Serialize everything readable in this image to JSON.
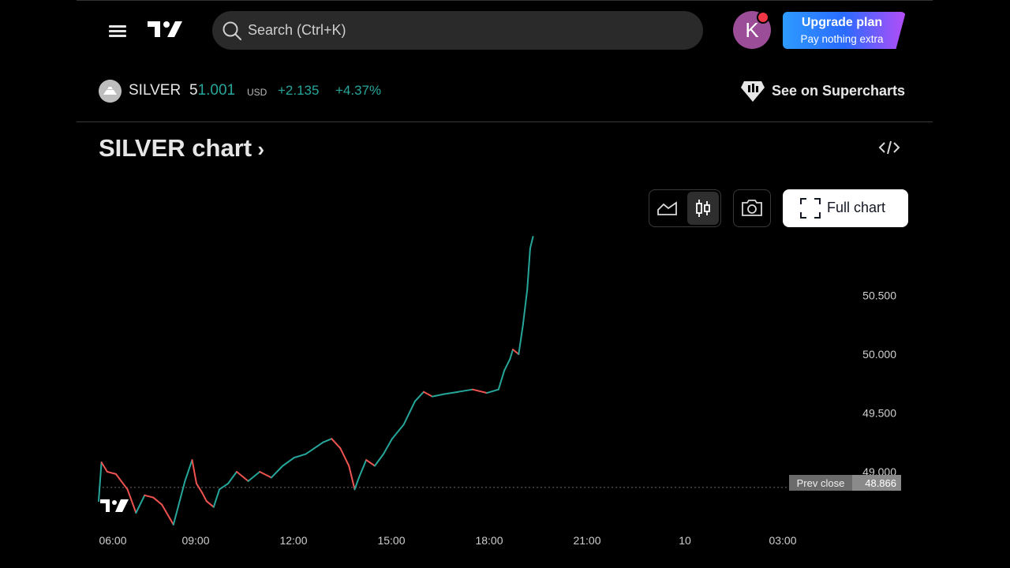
{
  "header": {
    "search_placeholder": "Search (Ctrl+K)",
    "avatar_initial": "K",
    "upgrade_title": "Upgrade plan",
    "upgrade_subtitle": "Pay nothing extra"
  },
  "symbol": {
    "name": "SILVER",
    "price_head": "5",
    "price_tail": "1.001",
    "currency": "USD",
    "change": "+2.135",
    "change_percent": "+4.37%",
    "supercharts_label": "See on Supercharts"
  },
  "chart_section": {
    "title": "SILVER chart",
    "full_chart_label": "Full chart"
  },
  "colors": {
    "up": "#26a69a",
    "down": "#ef5350",
    "accent": "#2962ff"
  },
  "chart_data": {
    "type": "line",
    "x_ticks": [
      "06:00",
      "09:00",
      "12:00",
      "15:00",
      "18:00",
      "21:00",
      "10",
      "03:00"
    ],
    "y_ticks": [
      "50.500",
      "50.000",
      "49.500",
      "49.000"
    ],
    "ylim": [
      48.55,
      51.0
    ],
    "prev_close_label": "Prev close",
    "prev_close_value": "48.866",
    "prev_close": 48.866,
    "x": [
      6.0,
      6.1,
      6.3,
      6.6,
      7.0,
      7.3,
      7.6,
      7.9,
      8.2,
      8.6,
      9.0,
      9.25,
      9.4,
      9.6,
      9.75,
      10.0,
      10.2,
      10.5,
      10.8,
      11.2,
      11.6,
      12.0,
      12.4,
      12.8,
      13.2,
      13.5,
      13.8,
      14.1,
      14.4,
      14.7,
      14.9,
      15.05,
      15.3,
      15.6,
      15.9,
      16.2,
      16.6,
      17.0,
      17.3,
      17.6,
      18.0,
      18.5,
      19.0,
      19.5,
      19.9,
      20.1,
      20.3,
      20.4,
      20.6,
      20.75,
      20.9,
      21.0,
      21.1
    ],
    "values": [
      48.75,
      49.08,
      49.0,
      48.98,
      48.85,
      48.65,
      48.8,
      48.78,
      48.72,
      48.55,
      48.92,
      49.1,
      48.9,
      48.82,
      48.75,
      48.7,
      48.85,
      48.9,
      49.0,
      48.92,
      49.0,
      48.95,
      49.05,
      49.12,
      49.15,
      49.2,
      49.25,
      49.28,
      49.2,
      49.05,
      48.85,
      48.95,
      49.1,
      49.05,
      49.15,
      49.28,
      49.4,
      49.6,
      49.68,
      49.64,
      49.66,
      49.68,
      49.7,
      49.67,
      49.7,
      49.86,
      49.96,
      50.04,
      50.0,
      50.25,
      50.55,
      50.9,
      51.0
    ]
  }
}
